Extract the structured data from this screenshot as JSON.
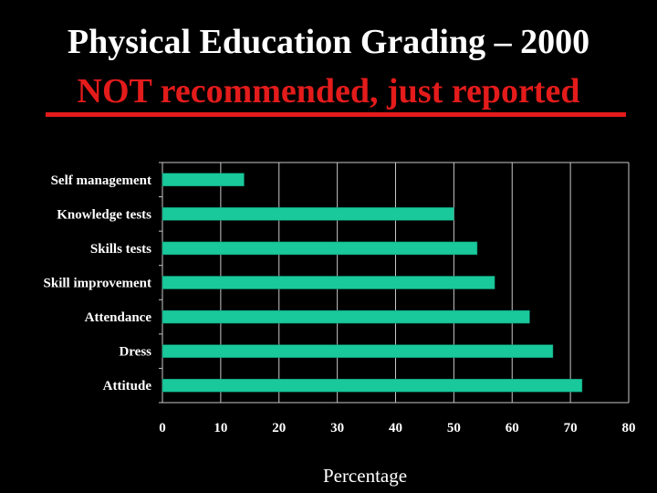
{
  "slide": {
    "title_line1": "Physical Education Grading – 2000",
    "title_line2": "NOT recommended, just reported"
  },
  "colors": {
    "background": "#000000",
    "subtitle": "#e31b1b",
    "bar": "#19c89b",
    "grid": "#c8c8c8",
    "text": "#ffffff"
  },
  "chart_data": {
    "type": "bar",
    "orientation": "horizontal",
    "categories": [
      "Self management",
      "Knowledge tests",
      "Skills tests",
      "Skill improvement",
      "Attendance",
      "Dress",
      "Attitude"
    ],
    "values": [
      14,
      50,
      54,
      57,
      63,
      67,
      72
    ],
    "xlabel": "Percentage",
    "xlim": [
      0,
      80
    ],
    "xticks": [
      0,
      10,
      20,
      30,
      40,
      50,
      60,
      70,
      80
    ],
    "grid": "vertical"
  }
}
